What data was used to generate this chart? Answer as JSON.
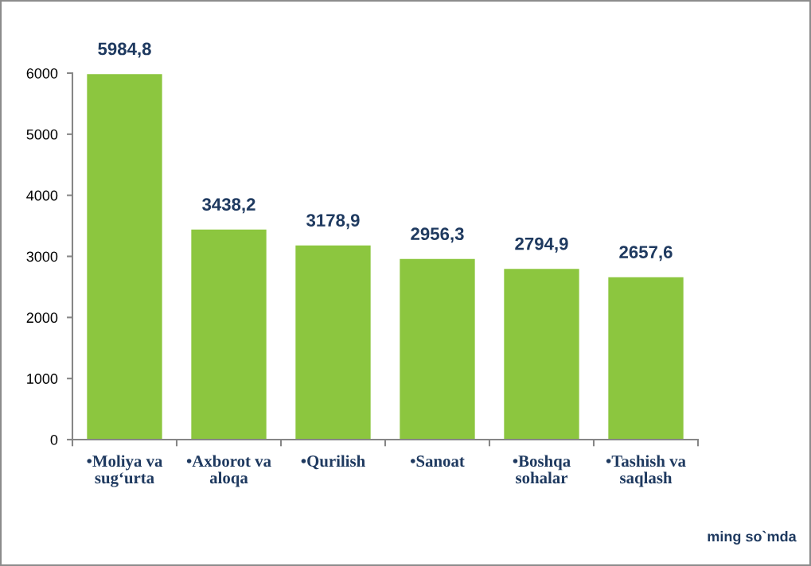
{
  "chart_data": {
    "type": "bar",
    "categories": [
      "•Moliya va\nsug‘urta",
      "•Axborot va\naloqa",
      "•Qurilish",
      "•Sanoat",
      "•Boshqa\nsohalar",
      "•Tashish va\nsaqlash"
    ],
    "values": [
      5984.8,
      3438.2,
      3178.9,
      2956.3,
      2794.9,
      2657.6
    ],
    "value_labels": [
      "5984,8",
      "3438,2",
      "3178,9",
      "2956,3",
      "2794,9",
      "2657,6"
    ],
    "color": "#8cc63f",
    "ylim": [
      0,
      6000
    ],
    "yticks": [
      0,
      1000,
      2000,
      3000,
      4000,
      5000,
      6000
    ],
    "annotations": [
      "ming so`mda"
    ]
  }
}
